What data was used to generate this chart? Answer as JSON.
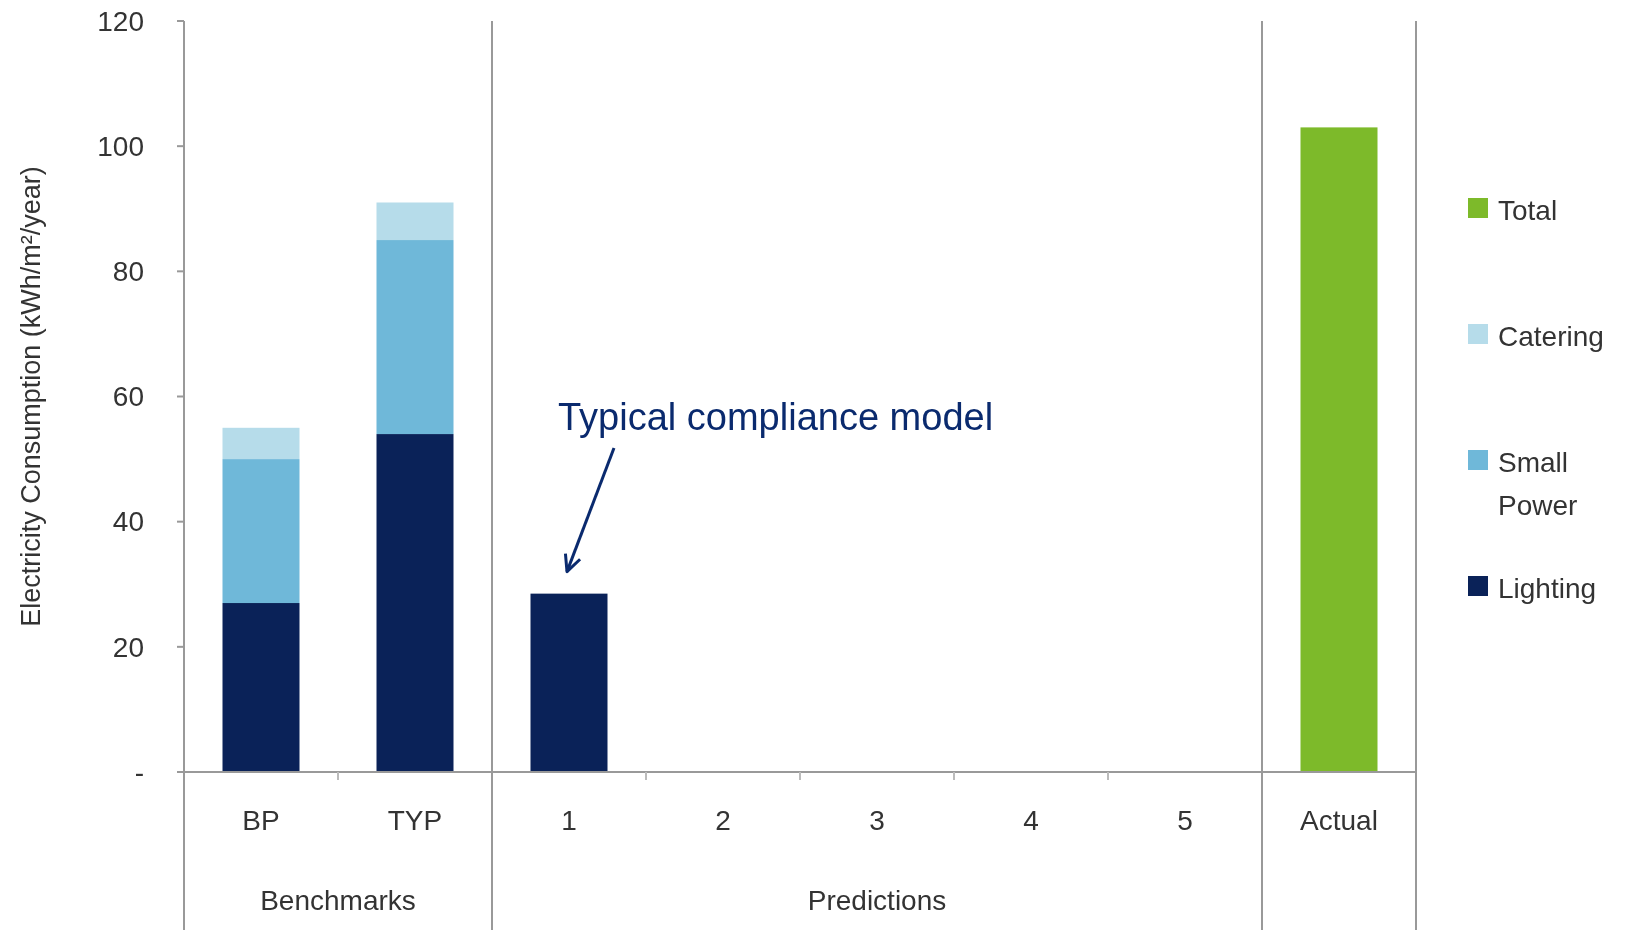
{
  "chart_data": {
    "type": "bar",
    "stacked": true,
    "ylabel": "Electricity Consumption (kWh/m²/year)",
    "categories": [
      "BP",
      "TYP",
      "1",
      "2",
      "3",
      "4",
      "5",
      "Actual"
    ],
    "series": [
      {
        "name": "Lighting",
        "color": "#0a2258",
        "values": [
          27,
          54,
          28.5,
          null,
          null,
          null,
          null,
          null
        ]
      },
      {
        "name": "Small Power",
        "color": "#6fb8d9",
        "values": [
          23,
          31,
          null,
          null,
          null,
          null,
          null,
          null
        ]
      },
      {
        "name": "Catering",
        "color": "#b6dcea",
        "values": [
          5,
          6,
          null,
          null,
          null,
          null,
          null,
          null
        ]
      },
      {
        "name": "Total",
        "color": "#7dba2a",
        "values": [
          null,
          null,
          null,
          null,
          null,
          null,
          null,
          103
        ]
      }
    ],
    "ylim": [
      0,
      120
    ],
    "yticks": [
      {
        "value": 0,
        "label": "-"
      },
      20,
      40,
      60,
      80,
      100,
      120
    ],
    "grid": false,
    "legend": "right",
    "annotations": [
      "Benchmarks",
      "Predictions",
      "Typical compliance model"
    ]
  }
}
